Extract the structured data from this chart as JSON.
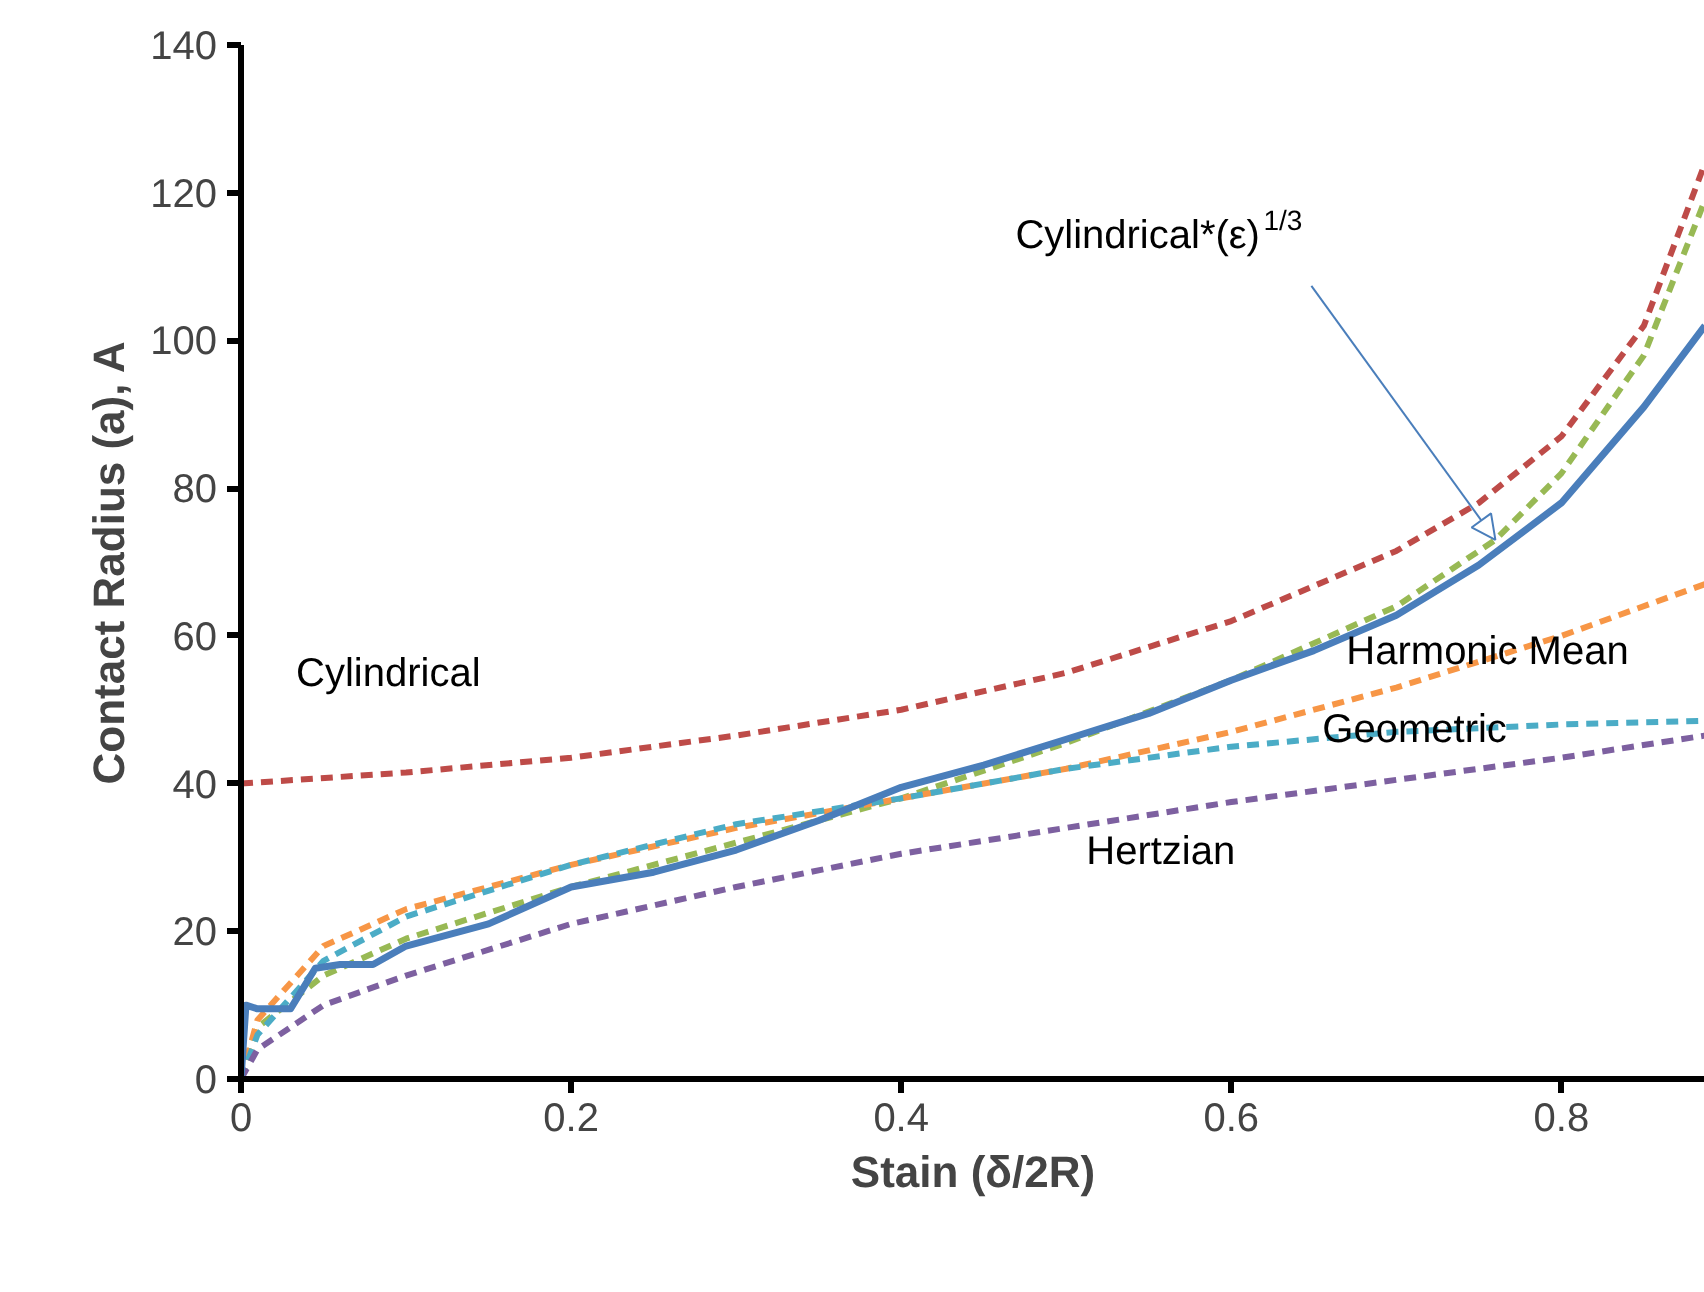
{
  "chart_data": {
    "type": "line",
    "xlabel": "Stain (δ/2R)",
    "ylabel": "Contact Radius (a), A",
    "xlim": [
      0,
      0.887
    ],
    "ylim": [
      0,
      140
    ],
    "xticks": [
      0,
      0.2,
      0.4,
      0.6,
      0.8
    ],
    "yticks": [
      0,
      20,
      40,
      60,
      80,
      100,
      120,
      140
    ],
    "grid": false,
    "series": [
      {
        "color": "#be4b48",
        "line_style": "dashed",
        "x": [
          0,
          0.1,
          0.2,
          0.3,
          0.4,
          0.5,
          0.6,
          0.7,
          0.75,
          0.8,
          0.85,
          0.887
        ],
        "values": [
          40,
          41.5,
          43.5,
          46.5,
          50,
          55,
          62,
          71.5,
          78,
          87,
          102,
          124
        ]
      },
      {
        "color": "#98b954",
        "line_style": "dashed",
        "x": [
          0,
          0.01,
          0.05,
          0.1,
          0.2,
          0.3,
          0.4,
          0.5,
          0.6,
          0.7,
          0.76,
          0.8,
          0.85,
          0.887
        ],
        "values": [
          0,
          7,
          14,
          19,
          26,
          32,
          38,
          45.5,
          54,
          64,
          73,
          82,
          98,
          119
        ]
      },
      {
        "color": "#f79646",
        "line_style": "dashed",
        "x": [
          0,
          0.01,
          0.05,
          0.1,
          0.2,
          0.3,
          0.4,
          0.5,
          0.6,
          0.7,
          0.8,
          0.887
        ],
        "values": [
          0,
          8,
          18,
          23,
          29,
          34,
          38,
          42,
          47,
          53,
          60,
          67
        ]
      },
      {
        "color": "#4bacc6",
        "line_style": "dashed",
        "x": [
          0,
          0.01,
          0.05,
          0.1,
          0.2,
          0.3,
          0.4,
          0.5,
          0.6,
          0.7,
          0.8,
          0.887
        ],
        "values": [
          0,
          6,
          16,
          22,
          29,
          34.5,
          38,
          42,
          45,
          47,
          48,
          48.5
        ]
      },
      {
        "color": "#7d60a0",
        "line_style": "dashed",
        "x": [
          0,
          0.01,
          0.05,
          0.1,
          0.2,
          0.3,
          0.4,
          0.5,
          0.6,
          0.7,
          0.8,
          0.887
        ],
        "values": [
          0,
          4,
          10,
          14,
          21,
          26,
          30.5,
          34,
          37.5,
          40.5,
          43.5,
          46.5
        ]
      },
      {
        "color": "#4a7ebb",
        "line_style": "solid",
        "x": [
          0,
          0.003,
          0.01,
          0.03,
          0.045,
          0.06,
          0.08,
          0.1,
          0.15,
          0.2,
          0.25,
          0.3,
          0.35,
          0.4,
          0.45,
          0.5,
          0.55,
          0.6,
          0.65,
          0.7,
          0.75,
          0.8,
          0.85,
          0.887
        ],
        "values": [
          0,
          10,
          9.5,
          9.5,
          15,
          15.5,
          15.5,
          18,
          21,
          26,
          28,
          31,
          35,
          39.5,
          42.5,
          46,
          49.5,
          54,
          58,
          62.8,
          69.6,
          78,
          91,
          102
        ]
      }
    ],
    "annotations": [
      {
        "text": "Cylindrical",
        "x": 0.1,
        "y": 41.5
      },
      {
        "text": "Cylindrical*(ε)$^{1/3}$",
        "x": 0.76,
        "y": 73
      },
      {
        "text": "Harmonic Mean",
        "x": 0.7,
        "y": 53
      },
      {
        "text": "Geometric",
        "x": 0.7,
        "y": 47
      },
      {
        "text": "Hertzian",
        "x": 0.5,
        "y": 34
      }
    ]
  }
}
